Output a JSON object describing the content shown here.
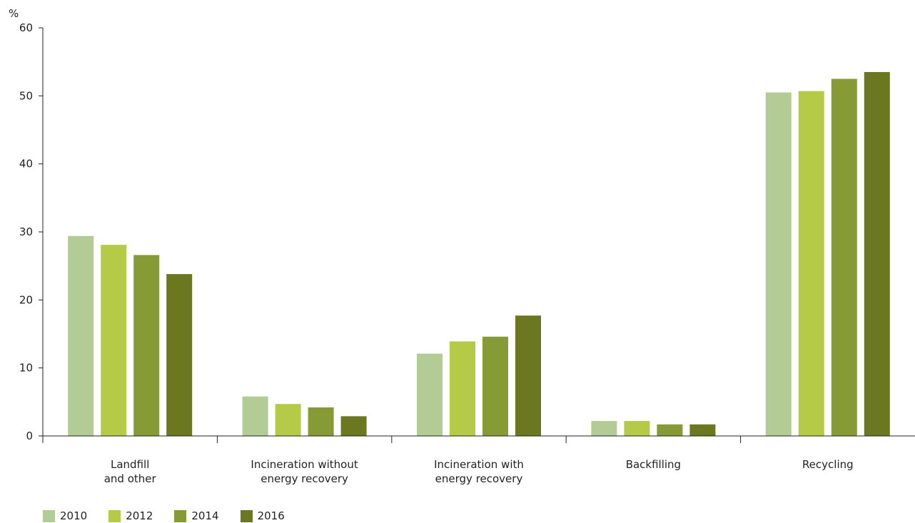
{
  "chart_data": {
    "type": "bar",
    "title": "",
    "xlabel": "",
    "ylabel": "%",
    "ylim": [
      0,
      60
    ],
    "yticks": [
      0,
      10,
      20,
      30,
      40,
      50,
      60
    ],
    "grid": false,
    "legend_position": "bottom-left",
    "categories": [
      [
        "Landfill",
        "and other"
      ],
      [
        "Incineration without",
        "energy recovery"
      ],
      [
        "Incineration with",
        "energy recovery"
      ],
      [
        "Backfilling"
      ],
      [
        "Recycling"
      ]
    ],
    "series": [
      {
        "name": "2010",
        "color": "#b3cc96",
        "values": [
          29.4,
          5.8,
          12.1,
          2.2,
          50.5
        ]
      },
      {
        "name": "2012",
        "color": "#b5cb47",
        "values": [
          28.1,
          4.7,
          13.9,
          2.2,
          50.7
        ]
      },
      {
        "name": "2014",
        "color": "#869b36",
        "values": [
          26.6,
          4.2,
          14.6,
          1.7,
          52.5
        ]
      },
      {
        "name": "2016",
        "color": "#6b7820",
        "values": [
          23.8,
          2.9,
          17.7,
          1.7,
          53.5
        ]
      }
    ]
  }
}
